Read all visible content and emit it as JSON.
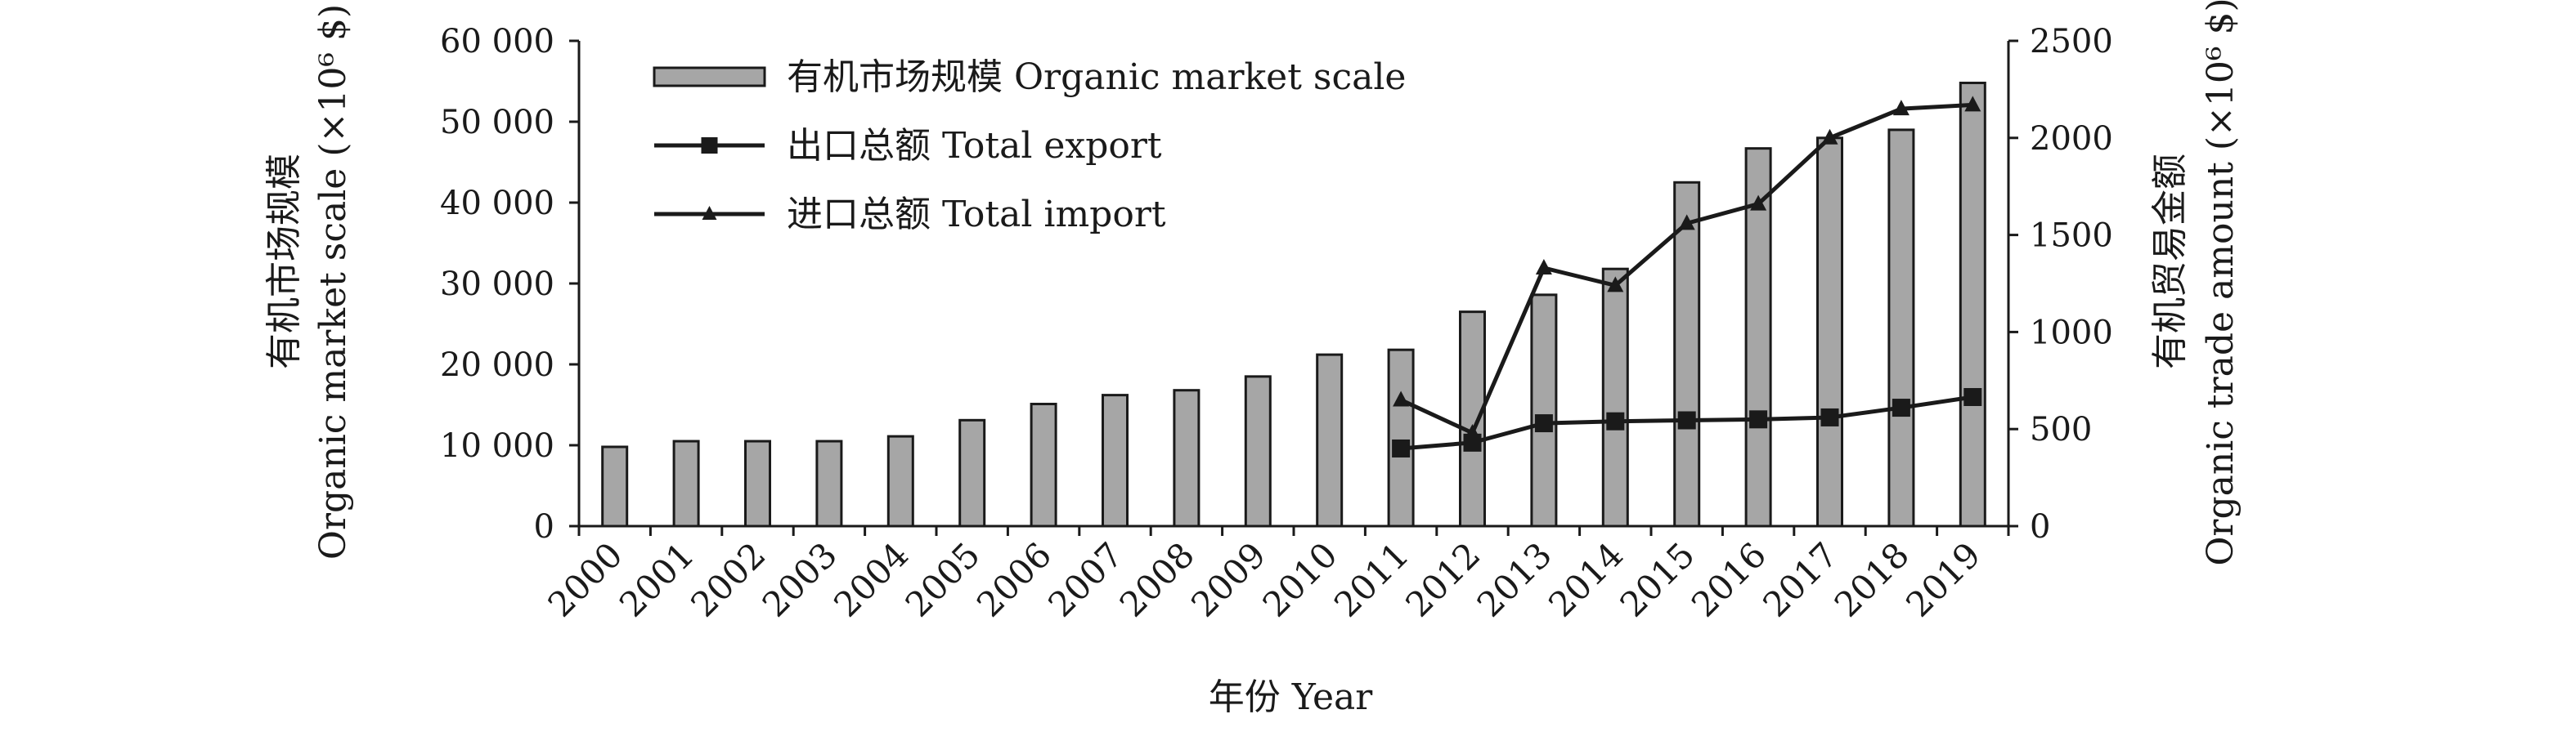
{
  "chart_data": {
    "type": "bar",
    "categories": [
      "2000",
      "2001",
      "2002",
      "2003",
      "2004",
      "2005",
      "2006",
      "2007",
      "2008",
      "2009",
      "2010",
      "2011",
      "2012",
      "2013",
      "2014",
      "2015",
      "2016",
      "2017",
      "2018",
      "2019"
    ],
    "left_axis": {
      "label_line1": "有机市场规模",
      "label_line2": "Organic market scale (×10⁶ $)",
      "ylim": [
        0,
        60000
      ],
      "ticks": [
        0,
        10000,
        20000,
        30000,
        40000,
        50000,
        60000
      ],
      "tick_labels": [
        "0",
        "10 000",
        "20 000",
        "30 000",
        "40 000",
        "50 000",
        "60 000"
      ]
    },
    "right_axis": {
      "label_line1": "有机贸易金额",
      "label_line2": "Organic trade amount (×10⁶ $)",
      "ylim": [
        0,
        2500
      ],
      "ticks": [
        0,
        500,
        1000,
        1500,
        2000,
        2500
      ],
      "tick_labels": [
        "0",
        "500",
        "1000",
        "1500",
        "2000",
        "2500"
      ]
    },
    "xlabel": "年份 Year",
    "series": [
      {
        "name": "有机市场规模 Organic market scale",
        "kind": "bar",
        "axis": "left",
        "color": "#a6a6a6",
        "values": [
          9800,
          10500,
          10500,
          10500,
          11100,
          13100,
          15100,
          16200,
          16800,
          18500,
          21200,
          21800,
          26500,
          28600,
          31800,
          42500,
          46700,
          48000,
          49000,
          54800
        ]
      },
      {
        "name": "出口总额 Total export",
        "kind": "line",
        "marker": "square",
        "axis": "right",
        "color": "#1a1a1a",
        "values": [
          null,
          null,
          null,
          null,
          null,
          null,
          null,
          null,
          null,
          null,
          null,
          400,
          430,
          530,
          540,
          545,
          550,
          560,
          610,
          665
        ]
      },
      {
        "name": "进口总额 Total import",
        "kind": "line",
        "marker": "triangle",
        "axis": "right",
        "color": "#1a1a1a",
        "values": [
          null,
          null,
          null,
          null,
          null,
          null,
          null,
          null,
          null,
          null,
          null,
          650,
          480,
          1330,
          1240,
          1560,
          1660,
          2000,
          2150,
          2170
        ]
      }
    ],
    "legend_position": "top-left",
    "grid": false
  }
}
